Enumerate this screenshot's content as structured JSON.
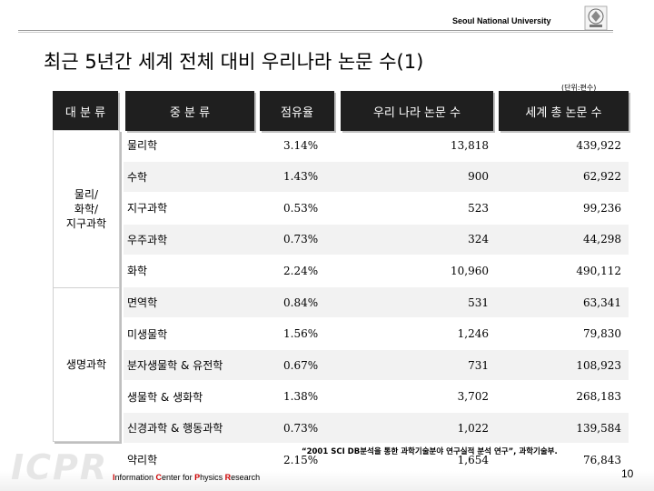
{
  "header": {
    "university": "Seoul National University"
  },
  "title": "최근 5년간 세계 전체 대비 우리나라 논문 수(1)",
  "unit": "(단위:편수)",
  "columns": [
    "대 분 류",
    "중 분 류",
    "점유율",
    "우리 나라 논문 수",
    "세계 총 논문 수"
  ],
  "groups": [
    {
      "label": "물리/\n화학/\n지구과학"
    },
    {
      "label": "생명과학"
    }
  ],
  "rows": [
    {
      "name": "물리학",
      "share": "3.14%",
      "korea": "13,818",
      "world": "439,922"
    },
    {
      "name": "수학",
      "share": "1.43%",
      "korea": "900",
      "world": "62,922"
    },
    {
      "name": "지구과학",
      "share": "0.53%",
      "korea": "523",
      "world": "99,236"
    },
    {
      "name": "우주과학",
      "share": "0.73%",
      "korea": "324",
      "world": "44,298"
    },
    {
      "name": "화학",
      "share": "2.24%",
      "korea": "10,960",
      "world": "490,112"
    },
    {
      "name": "면역학",
      "share": "0.84%",
      "korea": "531",
      "world": "63,341"
    },
    {
      "name": "미생물학",
      "share": "1.56%",
      "korea": "1,246",
      "world": "79,830"
    },
    {
      "name": "분자생물학 & 유전학",
      "share": "0.67%",
      "korea": "731",
      "world": "108,923"
    },
    {
      "name": "생물학 & 생화학",
      "share": "1.38%",
      "korea": "3,702",
      "world": "268,183"
    },
    {
      "name": "신경과학 & 행동과학",
      "share": "0.73%",
      "korea": "1,022",
      "world": "139,584"
    },
    {
      "name": "약리학",
      "share": "2.15%",
      "korea": "1,654",
      "world": "76,843"
    }
  ],
  "source": "“2001 SCI DB분석을 통한 과학기술분야 연구실적 분석 연구”, 과학기술부.",
  "footer": {
    "watermark": "ICPR",
    "center_i": "I",
    "center_1": "nformation ",
    "center_c": "C",
    "center_2": "enter for ",
    "center_p": "P",
    "center_3": "hysics ",
    "center_r": "R",
    "center_4": "esearch",
    "page_number": "10"
  }
}
